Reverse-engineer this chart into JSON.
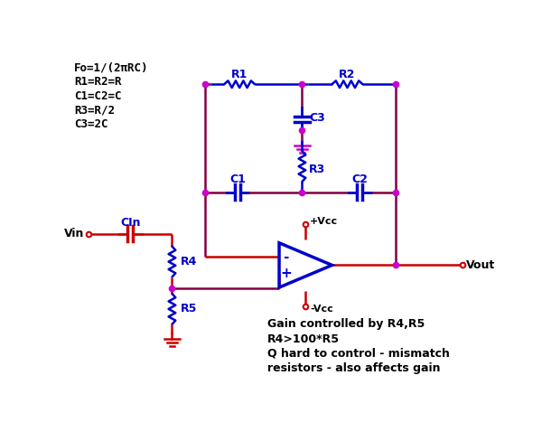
{
  "fig_width": 6.0,
  "fig_height": 4.88,
  "dpi": 100,
  "bg_color": "#ffffff",
  "rc": "#cc0000",
  "bc": "#0000cc",
  "dc": "#800040",
  "nc": "#cc00cc",
  "text_black": "#000000",
  "text_blue": "#0000cc",
  "title_text": [
    "Fo=1/(2πRC)",
    "R1=R2=R",
    "C1=C2=C",
    "R3=R/2",
    "C3=2C"
  ],
  "bottom_text": [
    "Gain controlled by R4,R5",
    "R4>100*R5",
    "Q hard to control - mismatch",
    "resistors - also affects gain"
  ]
}
